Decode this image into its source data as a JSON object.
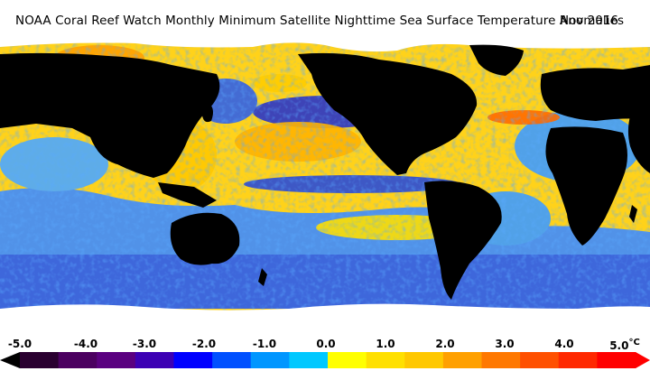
{
  "title": "NOAA Coral Reef Watch Monthly Minimum Satellite Nighttime Sea Surface Temperature Anomalies",
  "date": "Nov 2016",
  "colorbar": {
    "unit": "°C",
    "ticks": [
      "-5.0",
      "-4.0",
      "-3.0",
      "-2.0",
      "-1.0",
      "0.0",
      "1.0",
      "2.0",
      "3.0",
      "4.0",
      "5.0"
    ],
    "colors": [
      "#2a0030",
      "#4b0060",
      "#5a0080",
      "#3c00b4",
      "#0000ff",
      "#0050ff",
      "#0096ff",
      "#00c8ff",
      "#ffff00",
      "#ffe000",
      "#ffc800",
      "#ffa000",
      "#ff7800",
      "#ff5000",
      "#ff2800",
      "#ff0000"
    ]
  },
  "colors": {
    "land": "#000000",
    "ice": "#ffffff",
    "neutral_sea": "#ffee33",
    "cool": "#3fa0ff",
    "warm": "#ffb000"
  }
}
